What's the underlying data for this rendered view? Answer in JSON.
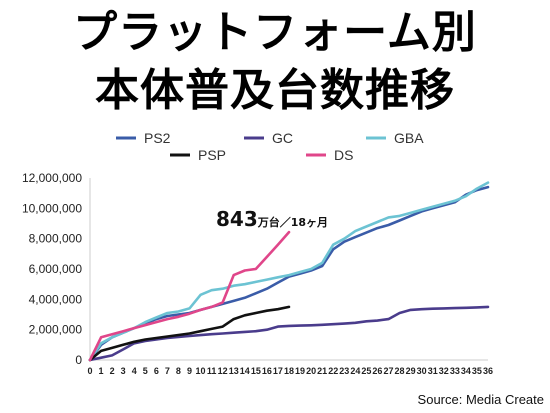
{
  "title_line1": "プラットフォーム別",
  "title_line2": "本体普及台数推移",
  "source": "Source: Media Create",
  "colors": {
    "PS2": "#3a5ca8",
    "GC": "#4a3c8c",
    "GBA": "#6cc3d3",
    "PSP": "#111111",
    "DS": "#e0468a",
    "axis": "#cccccc"
  },
  "chart_data": {
    "type": "line",
    "title": "プラットフォーム別 本体普及台数推移",
    "xlabel": "",
    "ylabel": "",
    "ylim": [
      0,
      12000000
    ],
    "xlim": [
      0,
      36
    ],
    "grid": false,
    "legend_placement": "top",
    "yticks": [
      "0",
      "2,000,000",
      "4,000,000",
      "6,000,000",
      "8,000,000",
      "10,000,000",
      "12,000,000"
    ],
    "xticks": [
      "0",
      "1",
      "2",
      "3",
      "4",
      "5",
      "6",
      "7",
      "8",
      "9",
      "10",
      "11",
      "12",
      "13",
      "14",
      "15",
      "16",
      "17",
      "18",
      "19",
      "20",
      "21",
      "22",
      "23",
      "24",
      "25",
      "26",
      "27",
      "28",
      "29",
      "30",
      "31",
      "32",
      "33",
      "34",
      "35",
      "36"
    ],
    "annotation": {
      "big": "843",
      "small": "万台／18ヶ月"
    },
    "series": [
      {
        "name": "PS2",
        "x": [
          0,
          1,
          2,
          3,
          4,
          5,
          6,
          7,
          8,
          9,
          10,
          11,
          12,
          13,
          14,
          15,
          16,
          17,
          18,
          19,
          20,
          21,
          22,
          23,
          24,
          25,
          26,
          27,
          28,
          29,
          30,
          31,
          32,
          33,
          34,
          35,
          36
        ],
        "values": [
          0,
          1000000,
          1500000,
          1800000,
          2100000,
          2400000,
          2700000,
          2900000,
          3000000,
          3100000,
          3300000,
          3500000,
          3700000,
          3900000,
          4100000,
          4400000,
          4700000,
          5100000,
          5500000,
          5700000,
          5900000,
          6200000,
          7300000,
          7800000,
          8100000,
          8400000,
          8700000,
          8900000,
          9200000,
          9500000,
          9800000,
          10000000,
          10200000,
          10400000,
          10900000,
          11200000,
          11400000
        ]
      },
      {
        "name": "GC",
        "x": [
          0,
          1,
          2,
          3,
          4,
          5,
          6,
          7,
          8,
          9,
          10,
          11,
          12,
          13,
          14,
          15,
          16,
          17,
          18,
          19,
          20,
          21,
          22,
          23,
          24,
          25,
          26,
          27,
          28,
          29,
          30,
          31,
          32,
          33,
          34,
          35,
          36
        ],
        "values": [
          0,
          150000,
          300000,
          700000,
          1100000,
          1250000,
          1350000,
          1450000,
          1520000,
          1580000,
          1640000,
          1700000,
          1750000,
          1800000,
          1850000,
          1900000,
          2000000,
          2200000,
          2250000,
          2270000,
          2290000,
          2320000,
          2360000,
          2400000,
          2450000,
          2550000,
          2600000,
          2700000,
          3100000,
          3300000,
          3350000,
          3380000,
          3400000,
          3420000,
          3440000,
          3470000,
          3500000
        ]
      },
      {
        "name": "GBA",
        "x": [
          0,
          1,
          2,
          3,
          4,
          5,
          6,
          7,
          8,
          9,
          10,
          11,
          12,
          13,
          14,
          15,
          16,
          17,
          18,
          19,
          20,
          21,
          22,
          23,
          24,
          25,
          26,
          27,
          28,
          29,
          30,
          31,
          32,
          33,
          34,
          35,
          36
        ],
        "values": [
          0,
          1100000,
          1500000,
          1800000,
          2100000,
          2500000,
          2800000,
          3100000,
          3200000,
          3400000,
          4300000,
          4600000,
          4700000,
          4900000,
          5000000,
          5150000,
          5300000,
          5450000,
          5600000,
          5800000,
          6000000,
          6400000,
          7600000,
          8000000,
          8500000,
          8800000,
          9100000,
          9400000,
          9500000,
          9700000,
          9900000,
          10100000,
          10300000,
          10500000,
          10800000,
          11300000,
          11700000
        ]
      },
      {
        "name": "PSP",
        "x": [
          0,
          1,
          2,
          3,
          4,
          5,
          6,
          7,
          8,
          9,
          10,
          11,
          12,
          13,
          14,
          15,
          16,
          17,
          18
        ],
        "values": [
          0,
          600000,
          800000,
          1000000,
          1200000,
          1350000,
          1450000,
          1550000,
          1650000,
          1750000,
          1900000,
          2050000,
          2200000,
          2700000,
          2950000,
          3100000,
          3250000,
          3350000,
          3500000
        ]
      },
      {
        "name": "DS",
        "x": [
          0,
          1,
          2,
          3,
          4,
          5,
          6,
          7,
          8,
          9,
          10,
          11,
          12,
          13,
          14,
          15,
          16,
          17,
          18
        ],
        "values": [
          0,
          1500000,
          1700000,
          1900000,
          2100000,
          2300000,
          2500000,
          2700000,
          2850000,
          3050000,
          3300000,
          3500000,
          3800000,
          5600000,
          5900000,
          6000000,
          6800000,
          7600000,
          8430000
        ]
      }
    ]
  }
}
